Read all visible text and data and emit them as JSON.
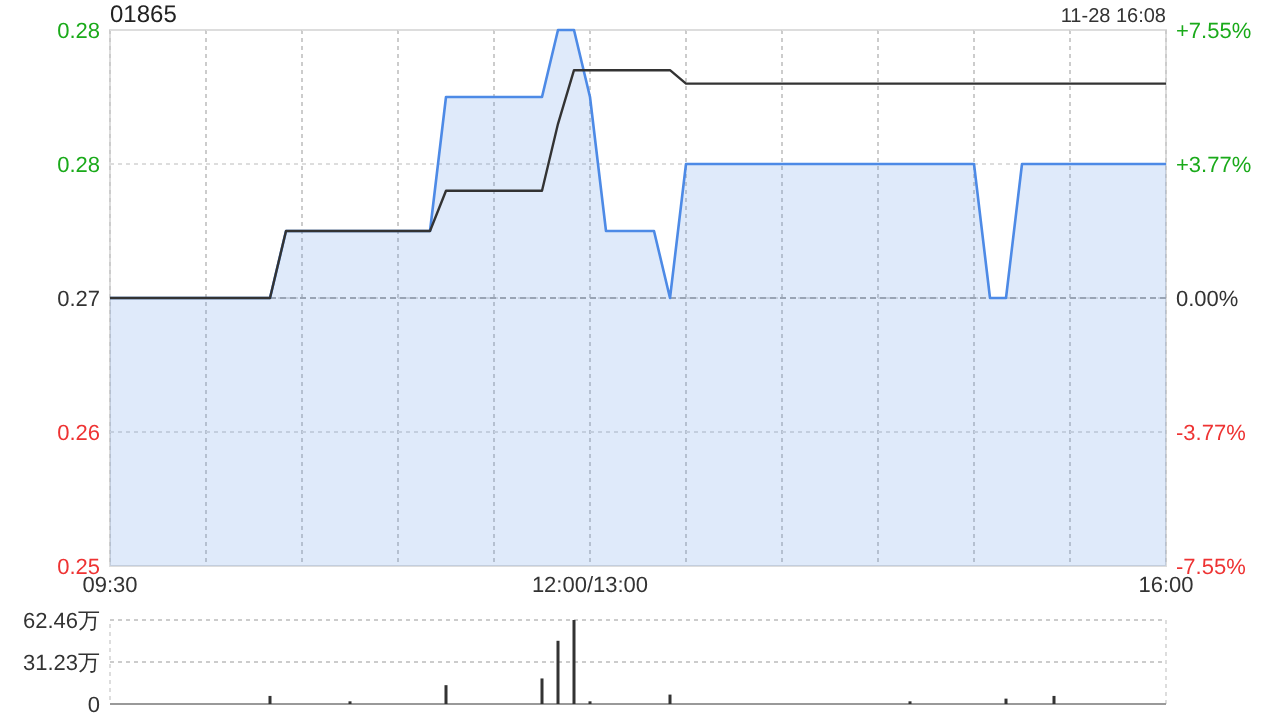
{
  "chart_data": [
    {
      "type": "line",
      "title": "01865",
      "annotations": [
        "11-28 16:08"
      ],
      "categories": [
        "09:30",
        null,
        null,
        null,
        null,
        null,
        null,
        null,
        null,
        null,
        null,
        null,
        null,
        null,
        null,
        null,
        null,
        null,
        null,
        null,
        null,
        null,
        null,
        null,
        null,
        null,
        null,
        null,
        null,
        null,
        "12:00/13:00",
        null,
        null,
        null,
        null,
        null,
        null,
        null,
        null,
        null,
        null,
        null,
        null,
        null,
        null,
        null,
        null,
        null,
        null,
        null,
        null,
        null,
        null,
        null,
        null,
        null,
        null,
        null,
        null,
        null,
        null,
        null,
        null,
        null,
        null,
        null,
        "16:00"
      ],
      "ylim": [
        0.245,
        0.285
      ],
      "yticks": [
        {
          "value": 0.245,
          "label": "0.25"
        },
        {
          "value": 0.255,
          "label": "0.26"
        },
        {
          "value": 0.265,
          "label": "0.27"
        },
        {
          "value": 0.275,
          "label": "0.28"
        },
        {
          "value": 0.285,
          "label": "0.28"
        }
      ],
      "y2lim": [
        -7.55,
        7.55
      ],
      "y2ticks": [
        {
          "value": -7.55,
          "label": "-7.55%"
        },
        {
          "value": -3.77,
          "label": "-3.77%"
        },
        {
          "value": 0,
          "label": "0.00%"
        },
        {
          "value": 3.77,
          "label": "+3.77%"
        },
        {
          "value": 7.55,
          "label": "+7.55%"
        }
      ],
      "grid": true,
      "ref_lines": [
        {
          "axis": "y",
          "value": 0.265,
          "color": "#aaaaaa",
          "line_style": "dashed"
        }
      ],
      "series": [
        {
          "type": "area",
          "color": "#4d8ae6",
          "values": [
            0.265,
            0.265,
            0.265,
            0.265,
            0.265,
            0.265,
            0.265,
            0.265,
            0.265,
            0.265,
            0.265,
            0.27,
            0.27,
            0.27,
            0.27,
            0.27,
            0.27,
            0.27,
            0.27,
            0.27,
            0.27,
            0.28,
            0.28,
            0.28,
            0.28,
            0.28,
            0.28,
            0.28,
            0.285,
            0.285,
            0.28,
            0.27,
            0.27,
            0.27,
            0.27,
            0.265,
            0.275,
            0.275,
            0.275,
            0.275,
            0.275,
            0.275,
            0.275,
            0.275,
            0.275,
            0.275,
            0.275,
            0.275,
            0.275,
            0.275,
            0.275,
            0.275,
            0.275,
            0.275,
            0.275,
            0.265,
            0.265,
            0.275,
            0.275,
            0.275,
            0.275,
            0.275,
            0.275,
            0.275,
            0.275,
            0.275,
            0.275
          ]
        },
        {
          "type": "line",
          "color": "#333333",
          "values": [
            0.265,
            0.265,
            0.265,
            0.265,
            0.265,
            0.265,
            0.265,
            0.265,
            0.265,
            0.265,
            0.265,
            0.27,
            0.27,
            0.27,
            0.27,
            0.27,
            0.27,
            0.27,
            0.27,
            0.27,
            0.27,
            0.273,
            0.273,
            0.273,
            0.273,
            0.273,
            0.273,
            0.273,
            0.278,
            0.282,
            0.282,
            0.282,
            0.282,
            0.282,
            0.282,
            0.282,
            0.281,
            0.281,
            0.281,
            0.281,
            0.281,
            0.281,
            0.281,
            0.281,
            0.281,
            0.281,
            0.281,
            0.281,
            0.281,
            0.281,
            0.281,
            0.281,
            0.281,
            0.281,
            0.281,
            0.281,
            0.281,
            0.281,
            0.281,
            0.281,
            0.281,
            0.281,
            0.281,
            0.281,
            0.281,
            0.281,
            0.281
          ]
        }
      ]
    },
    {
      "type": "bar",
      "categories": [
        null,
        null,
        null,
        null,
        null,
        null,
        null,
        null,
        null,
        null,
        null,
        null,
        null,
        null,
        null,
        null,
        null,
        null,
        null,
        null,
        null,
        null,
        null,
        null,
        null,
        null,
        null,
        null,
        null,
        null,
        null,
        null,
        null,
        null,
        null,
        null,
        null,
        null,
        null,
        null,
        null,
        null,
        null,
        null,
        null,
        null,
        null,
        null,
        null,
        null,
        null,
        null,
        null,
        null,
        null,
        null,
        null,
        null,
        null,
        null,
        null,
        null,
        null,
        null,
        null,
        null,
        null
      ],
      "ylim": [
        0,
        62.46
      ],
      "yticks": [
        0,
        {
          "value": 31.23,
          "label": "31.23万"
        },
        {
          "value": 62.46,
          "label": "62.46万"
        }
      ],
      "grid": "y",
      "tick_labels": "y",
      "color": "#333333",
      "values": [
        null,
        null,
        null,
        null,
        null,
        null,
        null,
        null,
        null,
        null,
        6,
        null,
        null,
        null,
        null,
        2,
        null,
        null,
        null,
        null,
        null,
        14,
        null,
        null,
        null,
        null,
        null,
        19,
        47,
        62.46,
        2,
        null,
        null,
        null,
        null,
        7,
        null,
        null,
        null,
        null,
        null,
        null,
        null,
        null,
        null,
        null,
        null,
        null,
        null,
        null,
        2,
        null,
        null,
        null,
        null,
        null,
        4,
        null,
        null,
        6,
        null,
        null,
        null,
        null,
        null,
        null,
        null
      ]
    }
  ]
}
